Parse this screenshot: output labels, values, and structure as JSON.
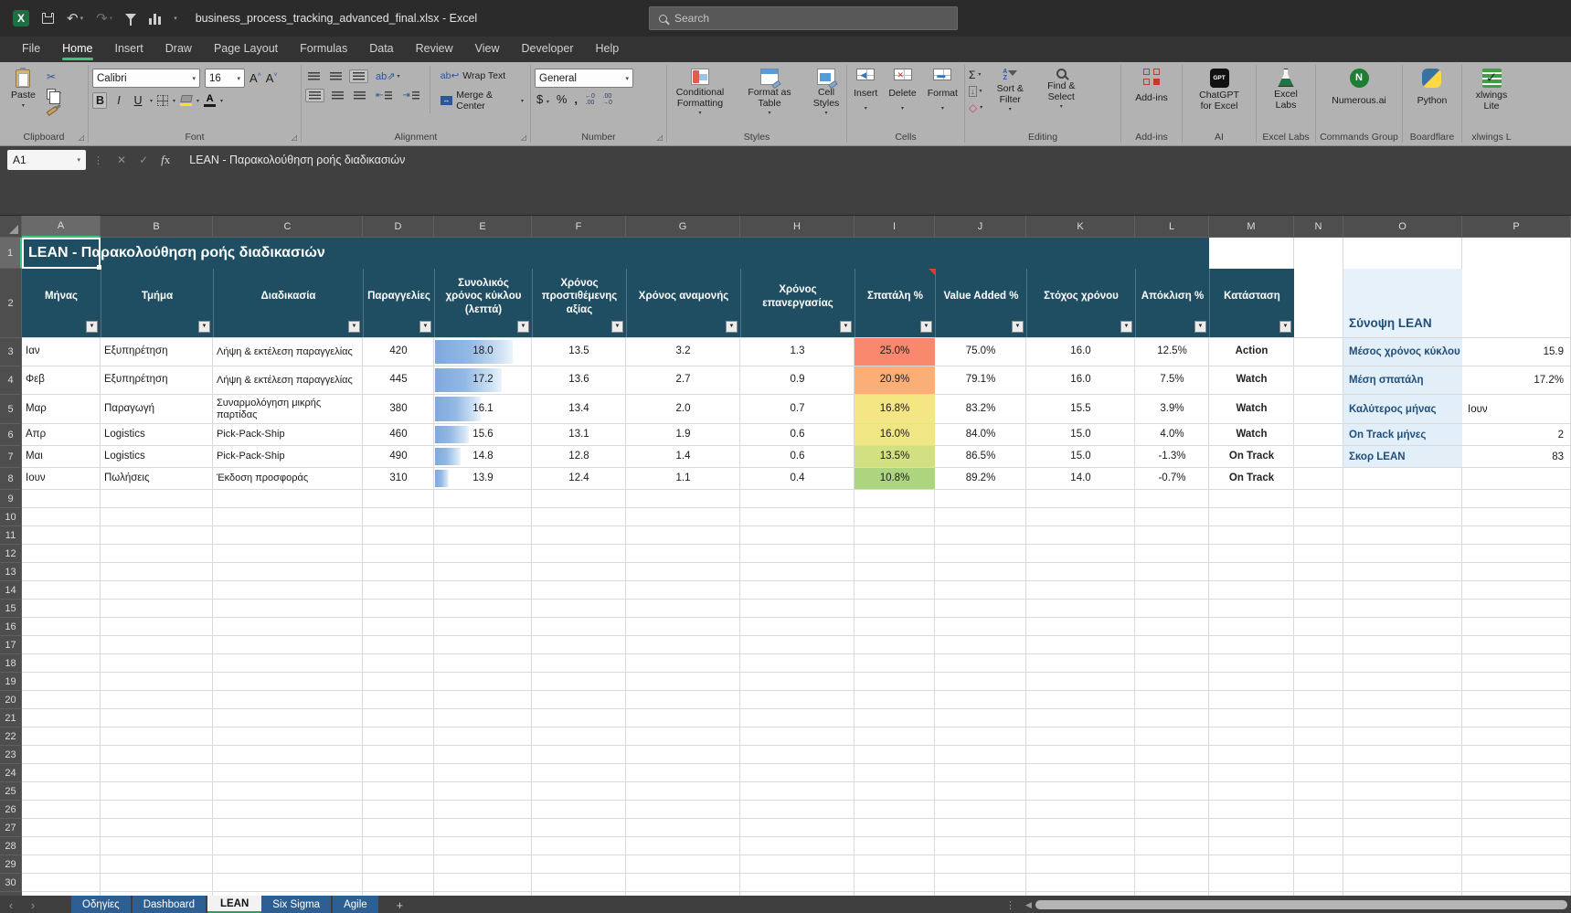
{
  "titlebar": {
    "title": "business_process_tracking_advanced_final.xlsx  -  Excel",
    "search_placeholder": "Search",
    "quick_access_icons": [
      "excel-logo",
      "save",
      "undo",
      "redo",
      "filter",
      "chart",
      "customize-quick-access"
    ]
  },
  "ribbon_tabs": {
    "items": [
      {
        "label": "File",
        "active": false
      },
      {
        "label": "Home",
        "active": true
      },
      {
        "label": "Insert",
        "active": false
      },
      {
        "label": "Draw",
        "active": false
      },
      {
        "label": "Page Layout",
        "active": false
      },
      {
        "label": "Formulas",
        "active": false
      },
      {
        "label": "Data",
        "active": false
      },
      {
        "label": "Review",
        "active": false
      },
      {
        "label": "View",
        "active": false
      },
      {
        "label": "Developer",
        "active": false
      },
      {
        "label": "Help",
        "active": false
      }
    ]
  },
  "ribbon": {
    "groups": {
      "clipboard": {
        "label": "Clipboard",
        "paste": "Paste"
      },
      "font": {
        "label": "Font",
        "font_name": "Calibri",
        "font_size": "16"
      },
      "alignment": {
        "label": "Alignment",
        "wrap_text": "Wrap Text",
        "merge_center": "Merge & Center"
      },
      "number": {
        "label": "Number",
        "format": "General"
      },
      "styles": {
        "label": "Styles",
        "conditional": "Conditional Formatting",
        "format_table": "Format as Table",
        "cell_styles": "Cell Styles"
      },
      "cells": {
        "label": "Cells",
        "insert": "Insert",
        "delete": "Delete",
        "format": "Format"
      },
      "editing": {
        "label": "Editing",
        "sort_filter": "Sort & Filter",
        "find_select": "Find & Select"
      },
      "addins": {
        "label": "Add-ins",
        "button": "Add-ins"
      },
      "ai": {
        "label": "AI",
        "button": "ChatGPT for Excel",
        "icon_text": "GPT"
      },
      "excel_labs": {
        "label": "Excel Labs",
        "button": "Excel Labs"
      },
      "commands": {
        "label": "Commands Group",
        "button": "Numerous.ai",
        "icon_text": "N"
      },
      "boardflare": {
        "label": "Boardflare",
        "button": "Python"
      },
      "xlwings": {
        "label": "xlwings L",
        "button": "xlwings Lite"
      }
    }
  },
  "formula_bar": {
    "name_box": "A1",
    "formula": "LEAN - Παρακολούθηση ροής διαδικασιών"
  },
  "sheet": {
    "column_letters": [
      "A",
      "B",
      "C",
      "D",
      "E",
      "F",
      "G",
      "H",
      "I",
      "J",
      "K",
      "L",
      "M",
      "N",
      "O",
      "P"
    ],
    "selected_cell": "A1",
    "banner_title": "LEAN - Παρακολούθηση ροής διαδικασιών",
    "headers": [
      "Μήνας",
      "Τμήμα",
      "Διαδικασία",
      "Παραγγελίες",
      "Συνολικός χρόνος κύκλου (λεπτά)",
      "Χρόνος προστιθέμενης αξίας",
      "Χρόνος αναμονής",
      "Χρόνος επανεργασίας",
      "Σπατάλη %",
      "Value Added %",
      "Στόχος χρόνου",
      "Απόκλιση %",
      "Κατάσταση"
    ],
    "comment_flag_header_index": 8,
    "rows": [
      {
        "cells": [
          "Ιαν",
          "Εξυπηρέτηση",
          "Λήψη & εκτέλεση παραγγελίας",
          "420",
          "18.0",
          "13.5",
          "3.2",
          "1.3",
          "25.0%",
          "75.0%",
          "16.0",
          "12.5%",
          "Action"
        ],
        "waste_bg": "#F9886E",
        "bar_pct": 79
      },
      {
        "cells": [
          "Φεβ",
          "Εξυπηρέτηση",
          "Λήψη & εκτέλεση παραγγελίας",
          "445",
          "17.2",
          "13.6",
          "2.7",
          "0.9",
          "20.9%",
          "79.1%",
          "16.0",
          "7.5%",
          "Watch"
        ],
        "waste_bg": "#FBAE75",
        "bar_pct": 68
      },
      {
        "cells": [
          "Μαρ",
          "Παραγωγή",
          "Συναρμολόγηση μικρής παρτίδας",
          "380",
          "16.1",
          "13.4",
          "2.0",
          "0.7",
          "16.8%",
          "83.2%",
          "15.5",
          "3.9%",
          "Watch"
        ],
        "waste_bg": "#F3E683",
        "bar_pct": 47
      },
      {
        "cells": [
          "Απρ",
          "Logistics",
          "Pick-Pack-Ship",
          "460",
          "15.6",
          "13.1",
          "1.9",
          "0.6",
          "16.0%",
          "84.0%",
          "15.0",
          "4.0%",
          "Watch"
        ],
        "waste_bg": "#F0E684",
        "bar_pct": 35
      },
      {
        "cells": [
          "Μαι",
          "Logistics",
          "Pick-Pack-Ship",
          "490",
          "14.8",
          "12.8",
          "1.4",
          "0.6",
          "13.5%",
          "86.5%",
          "15.0",
          "-1.3%",
          "On Track"
        ],
        "waste_bg": "#D2E081",
        "bar_pct": 26
      },
      {
        "cells": [
          "Ιουν",
          "Πωλήσεις",
          "Έκδοση προσφοράς",
          "310",
          "13.9",
          "12.4",
          "1.1",
          "0.4",
          "10.8%",
          "89.2%",
          "14.0",
          "-0.7%",
          "On Track"
        ],
        "waste_bg": "#ADD57F",
        "bar_pct": 14
      }
    ],
    "summary": {
      "heading": "Σύνοψη LEAN",
      "items": [
        {
          "label": "Μέσος χρόνος κύκλου",
          "value": "15.9",
          "align": "right"
        },
        {
          "label": "Μέση σπατάλη",
          "value": "17.2%",
          "align": "right"
        },
        {
          "label": "Καλύτερος μήνας",
          "value": "Ιουν",
          "align": "left"
        },
        {
          "label": "On Track μήνες",
          "value": "2",
          "align": "right"
        },
        {
          "label": "Σκορ LEAN",
          "value": "83",
          "align": "right"
        }
      ]
    },
    "first_row_number": 1,
    "last_row_number": 30
  },
  "sheet_tabs": {
    "items": [
      {
        "label": "Οδηγίες",
        "active": false
      },
      {
        "label": "Dashboard",
        "active": false
      },
      {
        "label": "LEAN",
        "active": true
      },
      {
        "label": "Six Sigma",
        "active": false
      },
      {
        "label": "Agile",
        "active": false
      }
    ]
  },
  "colors": {
    "banner_blue": "#1F4E63",
    "accent_green": "#3EC57F",
    "summary_text_blue": "#1F4E79",
    "summary_label_bg": "#E2EEF8",
    "data_bar_blue": "#7FA9DC",
    "inactive_tab_blue": "#2E5F92",
    "ribbon_gray": "#B2B2B2"
  }
}
